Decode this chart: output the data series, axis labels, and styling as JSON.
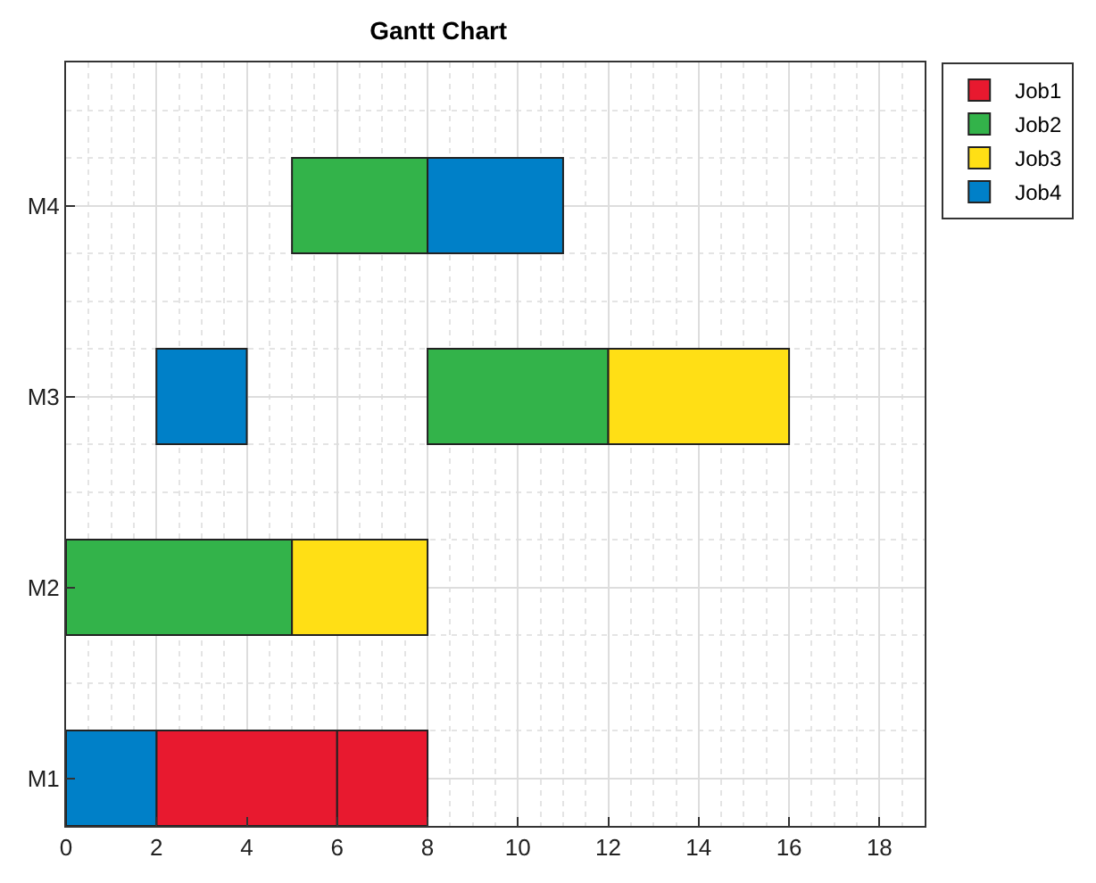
{
  "chart_data": {
    "type": "bar",
    "title": "Gantt Chart",
    "orientation": "horizontal",
    "categories": [
      "M4",
      "M3",
      "M2",
      "M1"
    ],
    "series": [
      {
        "name": "Job1",
        "color": "#e8192f",
        "values": [
          null,
          null,
          null,
          4
        ],
        "base": [
          null,
          null,
          null,
          2
        ]
      },
      {
        "name": "Job2",
        "color": "#33b34a",
        "values": [
          3,
          4,
          5,
          null
        ],
        "base": [
          5,
          8,
          0,
          null
        ]
      },
      {
        "name": "Job3",
        "color": "#ffdf15",
        "values": [
          null,
          4,
          3,
          null
        ],
        "base": [
          null,
          12,
          5,
          null
        ]
      },
      {
        "name": "Job4",
        "color": "#0080c8",
        "values": [
          3,
          2,
          null,
          2
        ],
        "base": [
          8,
          2,
          null,
          0
        ]
      },
      {
        "color": "#e8192f",
        "values": [
          null,
          null,
          null,
          2
        ],
        "base": [
          null,
          null,
          null,
          6
        ]
      }
    ],
    "xlim": [
      0,
      19
    ],
    "xticks": [
      0,
      2,
      4,
      6,
      8,
      10,
      12,
      14,
      16,
      18
    ],
    "grid": true,
    "legend": "top right"
  }
}
